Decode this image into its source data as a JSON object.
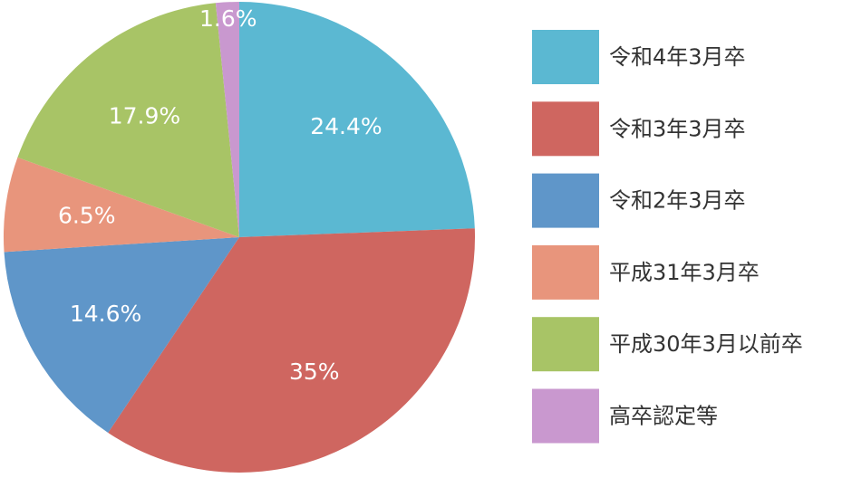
{
  "chart_data": {
    "type": "pie",
    "title": "",
    "slices": [
      {
        "name": "令和4年3月卒",
        "value": 24.4,
        "label": "24.4%",
        "color": "#5bb8d2"
      },
      {
        "name": "令和3年3月卒",
        "value": 35,
        "label": "35%",
        "color": "#cf6660"
      },
      {
        "name": "令和2年3月卒",
        "value": 14.6,
        "label": "14.6%",
        "color": "#5f96c9"
      },
      {
        "name": "平成31年3月卒",
        "value": 6.5,
        "label": "6.5%",
        "color": "#e8957c"
      },
      {
        "name": "平成30年3月以前卒",
        "value": 17.9,
        "label": "17.9%",
        "color": "#a8c466"
      },
      {
        "name": "高卒認定等",
        "value": 1.6,
        "label": "1.6%",
        "color": "#c998cf"
      }
    ],
    "start_angle": "12 o'clock",
    "direction": "clockwise",
    "legend_position": "right"
  }
}
